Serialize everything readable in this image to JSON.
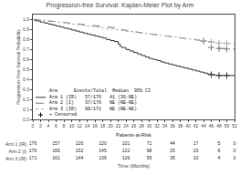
{
  "chart_data": {
    "type": "step",
    "title": "Progression-free Survival: Kaplan-Meier Plot by Arm",
    "xlabel": "Time (Months)",
    "ylabel": "Progression-Free Survival Probability",
    "xlim": [
      0,
      52
    ],
    "ylim": [
      0.0,
      1.05
    ],
    "xticks": [
      0,
      2,
      4,
      6,
      8,
      10,
      12,
      14,
      16,
      18,
      20,
      22,
      24,
      26,
      28,
      30,
      32,
      34,
      36,
      38,
      40,
      42,
      44,
      46,
      48,
      50,
      52
    ],
    "yticks": [
      {
        "value": 0.0,
        "label": "0.0"
      },
      0.1,
      0.2,
      0.3,
      0.4,
      0.5,
      0.6,
      0.7,
      0.8,
      0.9,
      {
        "value": 1.0,
        "label": "1.0"
      }
    ],
    "grid": false,
    "legend_title": "Arm      Events/Total  Median  95% CI",
    "series": [
      {
        "name": "Arm 1 (IR)   57/176   41 (36-NE)",
        "color": "#333333",
        "line_style": "solid",
        "x": [
          0,
          0.5,
          1,
          2,
          3,
          4,
          5,
          6,
          7,
          8,
          9,
          10,
          11,
          12,
          13,
          14,
          15,
          16,
          17,
          18,
          19,
          20,
          21,
          22,
          22.5,
          23,
          24,
          25,
          26,
          27,
          28,
          29,
          30,
          31,
          32,
          33,
          34,
          35,
          36,
          37,
          38,
          39,
          40,
          41,
          42,
          43,
          44,
          45,
          46,
          47,
          48,
          50,
          52
        ],
        "values": [
          1.0,
          0.99,
          0.985,
          0.975,
          0.965,
          0.955,
          0.945,
          0.935,
          0.925,
          0.915,
          0.905,
          0.895,
          0.885,
          0.875,
          0.865,
          0.855,
          0.845,
          0.835,
          0.825,
          0.815,
          0.8,
          0.79,
          0.78,
          0.755,
          0.73,
          0.72,
          0.7,
          0.685,
          0.67,
          0.655,
          0.64,
          0.625,
          0.61,
          0.6,
          0.59,
          0.575,
          0.565,
          0.555,
          0.545,
          0.535,
          0.525,
          0.515,
          0.505,
          0.495,
          0.485,
          0.475,
          0.465,
          0.455,
          0.448,
          0.443,
          0.44,
          0.44,
          0.44
        ],
        "censored_x": [
          46,
          48,
          50
        ],
        "censored_values": [
          0.448,
          0.44,
          0.44
        ]
      },
      {
        "name": "Arm 2 (I)    37/176   NE (NE-NE)",
        "color": "#777777",
        "line_style": "dashed",
        "x": [
          0,
          1,
          2,
          3,
          4,
          5,
          6,
          7,
          8,
          9,
          10,
          11,
          12,
          13,
          14,
          15,
          16,
          17,
          18,
          19,
          20,
          21,
          22,
          23,
          24,
          25,
          26,
          27,
          28,
          29,
          30,
          31,
          32,
          33,
          34,
          35,
          36,
          37,
          38,
          39,
          40,
          41,
          42,
          43,
          44,
          45,
          46,
          47,
          48,
          50,
          52
        ],
        "values": [
          1.0,
          0.997,
          0.993,
          0.989,
          0.985,
          0.981,
          0.977,
          0.973,
          0.969,
          0.965,
          0.961,
          0.957,
          0.953,
          0.949,
          0.945,
          0.941,
          0.937,
          0.933,
          0.929,
          0.925,
          0.921,
          0.917,
          0.905,
          0.895,
          0.888,
          0.882,
          0.876,
          0.87,
          0.865,
          0.86,
          0.855,
          0.85,
          0.845,
          0.84,
          0.835,
          0.83,
          0.825,
          0.82,
          0.815,
          0.81,
          0.805,
          0.8,
          0.795,
          0.79,
          0.785,
          0.78,
          0.72,
          0.715,
          0.71,
          0.705,
          0.7
        ],
        "censored_x": [
          44,
          46,
          48,
          50
        ],
        "censored_values": [
          0.785,
          0.72,
          0.71,
          0.705
        ]
      },
      {
        "name": "Arm 3 (IR)   99/171   NE (NE-NE)",
        "color": "#aaaaaa",
        "line_style": "dotted",
        "x": [
          0,
          1,
          2,
          3,
          4,
          5,
          6,
          7,
          8,
          9,
          10,
          11,
          12,
          13,
          14,
          15,
          16,
          17,
          18,
          19,
          20,
          21,
          22,
          23,
          24,
          25,
          26,
          27,
          28,
          29,
          30,
          31,
          32,
          33,
          34,
          35,
          36,
          37,
          38,
          39,
          40,
          41,
          42,
          43,
          44,
          45,
          46,
          47,
          48,
          50,
          52
        ],
        "values": [
          1.0,
          0.996,
          0.992,
          0.988,
          0.984,
          0.98,
          0.975,
          0.97,
          0.965,
          0.96,
          0.955,
          0.95,
          0.945,
          0.94,
          0.935,
          0.93,
          0.925,
          0.92,
          0.915,
          0.91,
          0.905,
          0.9,
          0.895,
          0.89,
          0.885,
          0.88,
          0.875,
          0.87,
          0.865,
          0.86,
          0.855,
          0.85,
          0.845,
          0.84,
          0.835,
          0.83,
          0.825,
          0.82,
          0.815,
          0.81,
          0.805,
          0.8,
          0.795,
          0.79,
          0.785,
          0.78,
          0.775,
          0.77,
          0.765,
          0.76,
          0.76
        ],
        "censored_x": [
          44,
          46,
          48,
          50
        ],
        "censored_values": [
          0.785,
          0.775,
          0.765,
          0.76
        ]
      }
    ],
    "censor_legend": {
      "name": "+ Censored",
      "marker": "cross",
      "color": "black"
    },
    "patients_at_risk": {
      "title": "Patients-at-Risk",
      "times": [
        0,
        6,
        12,
        18,
        24,
        30,
        36,
        42,
        48,
        52
      ],
      "rows": [
        {
          "name": "Arm 1 (IR)",
          "values": [
            176,
            157,
            126,
            120,
            101,
            71,
            44,
            17,
            5,
            0
          ]
        },
        {
          "name": "Arm 2 (I)",
          "values": [
            176,
            166,
            152,
            145,
            122,
            98,
            25,
            23,
            6,
            0
          ]
        },
        {
          "name": "Arm 3 (IR)",
          "values": [
            171,
            161,
            144,
            136,
            126,
            59,
            35,
            10,
            4,
            0
          ]
        }
      ]
    }
  }
}
